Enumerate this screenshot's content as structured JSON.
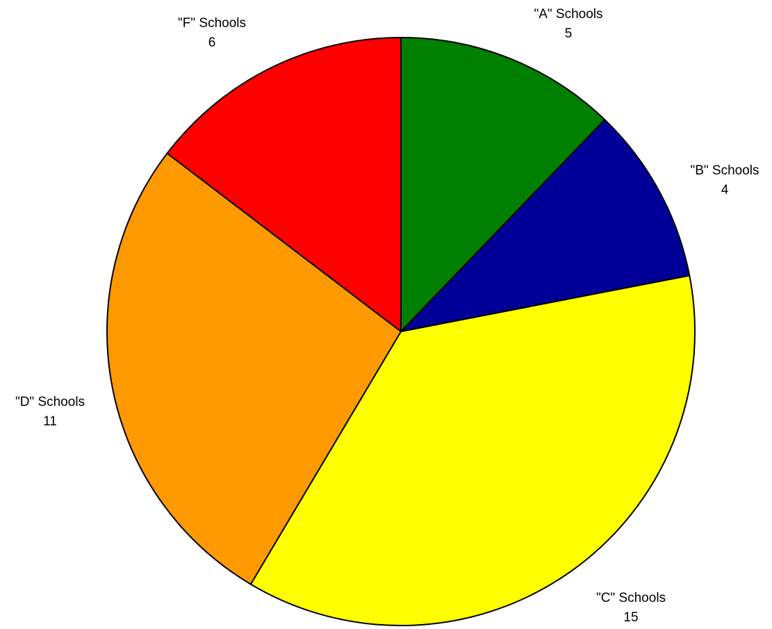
{
  "chart_data": {
    "type": "pie",
    "title": "",
    "start_angle_deg": 0,
    "direction": "clockwise",
    "legend": "none",
    "slices": [
      {
        "label": "\"A\" Schools",
        "value": 5,
        "color": "#008000"
      },
      {
        "label": "\"B\" Schools",
        "value": 4,
        "color": "#000099"
      },
      {
        "label": "\"C\" Schools",
        "value": 15,
        "color": "#ffff00"
      },
      {
        "label": "\"D\" Schools",
        "value": 11,
        "color": "#ff9900"
      },
      {
        "label": "\"F\" Schools",
        "value": 6,
        "color": "#ff0000"
      }
    ]
  }
}
